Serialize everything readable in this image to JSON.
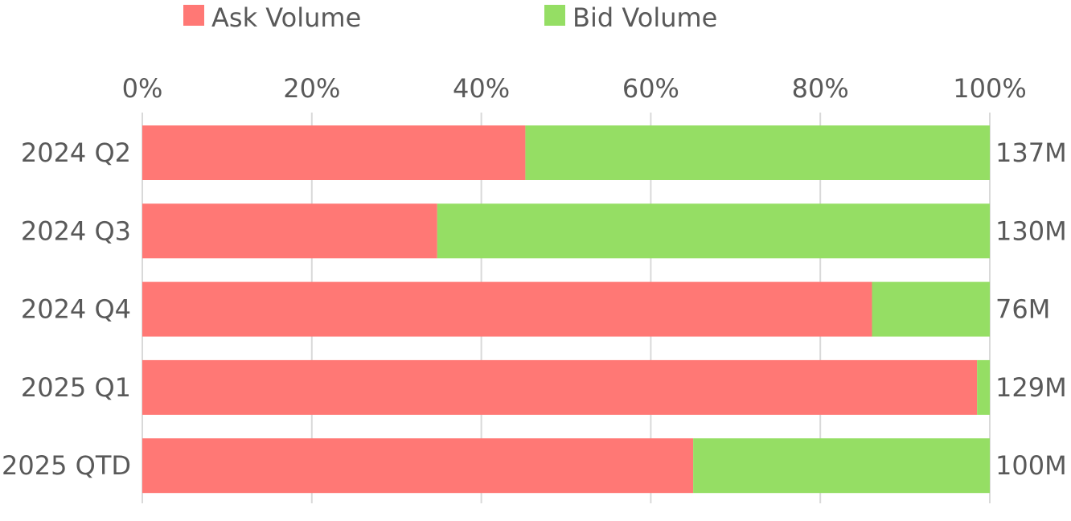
{
  "chart_data": {
    "type": "bar",
    "orientation": "horizontal",
    "stacked": true,
    "normalized": "percent",
    "categories": [
      "2024 Q2",
      "2024 Q3",
      "2024 Q4",
      "2025 Q1",
      "2025 QTD"
    ],
    "series": [
      {
        "name": "Ask Volume",
        "color": "#ff7875",
        "values": [
          45.2,
          34.8,
          86.1,
          98.5,
          65.0
        ]
      },
      {
        "name": "Bid Volume",
        "color": "#95de64",
        "values": [
          54.8,
          65.2,
          13.9,
          1.5,
          35.0
        ]
      }
    ],
    "totals": [
      "137M",
      "130M",
      "76M",
      "129M",
      "100M"
    ],
    "x_ticks": [
      "0%",
      "20%",
      "40%",
      "60%",
      "80%",
      "100%"
    ],
    "xlim": [
      0,
      100
    ],
    "xaxis_position": "top",
    "grid": true,
    "legend_position": "top",
    "title": "",
    "xlabel": "",
    "ylabel": ""
  }
}
